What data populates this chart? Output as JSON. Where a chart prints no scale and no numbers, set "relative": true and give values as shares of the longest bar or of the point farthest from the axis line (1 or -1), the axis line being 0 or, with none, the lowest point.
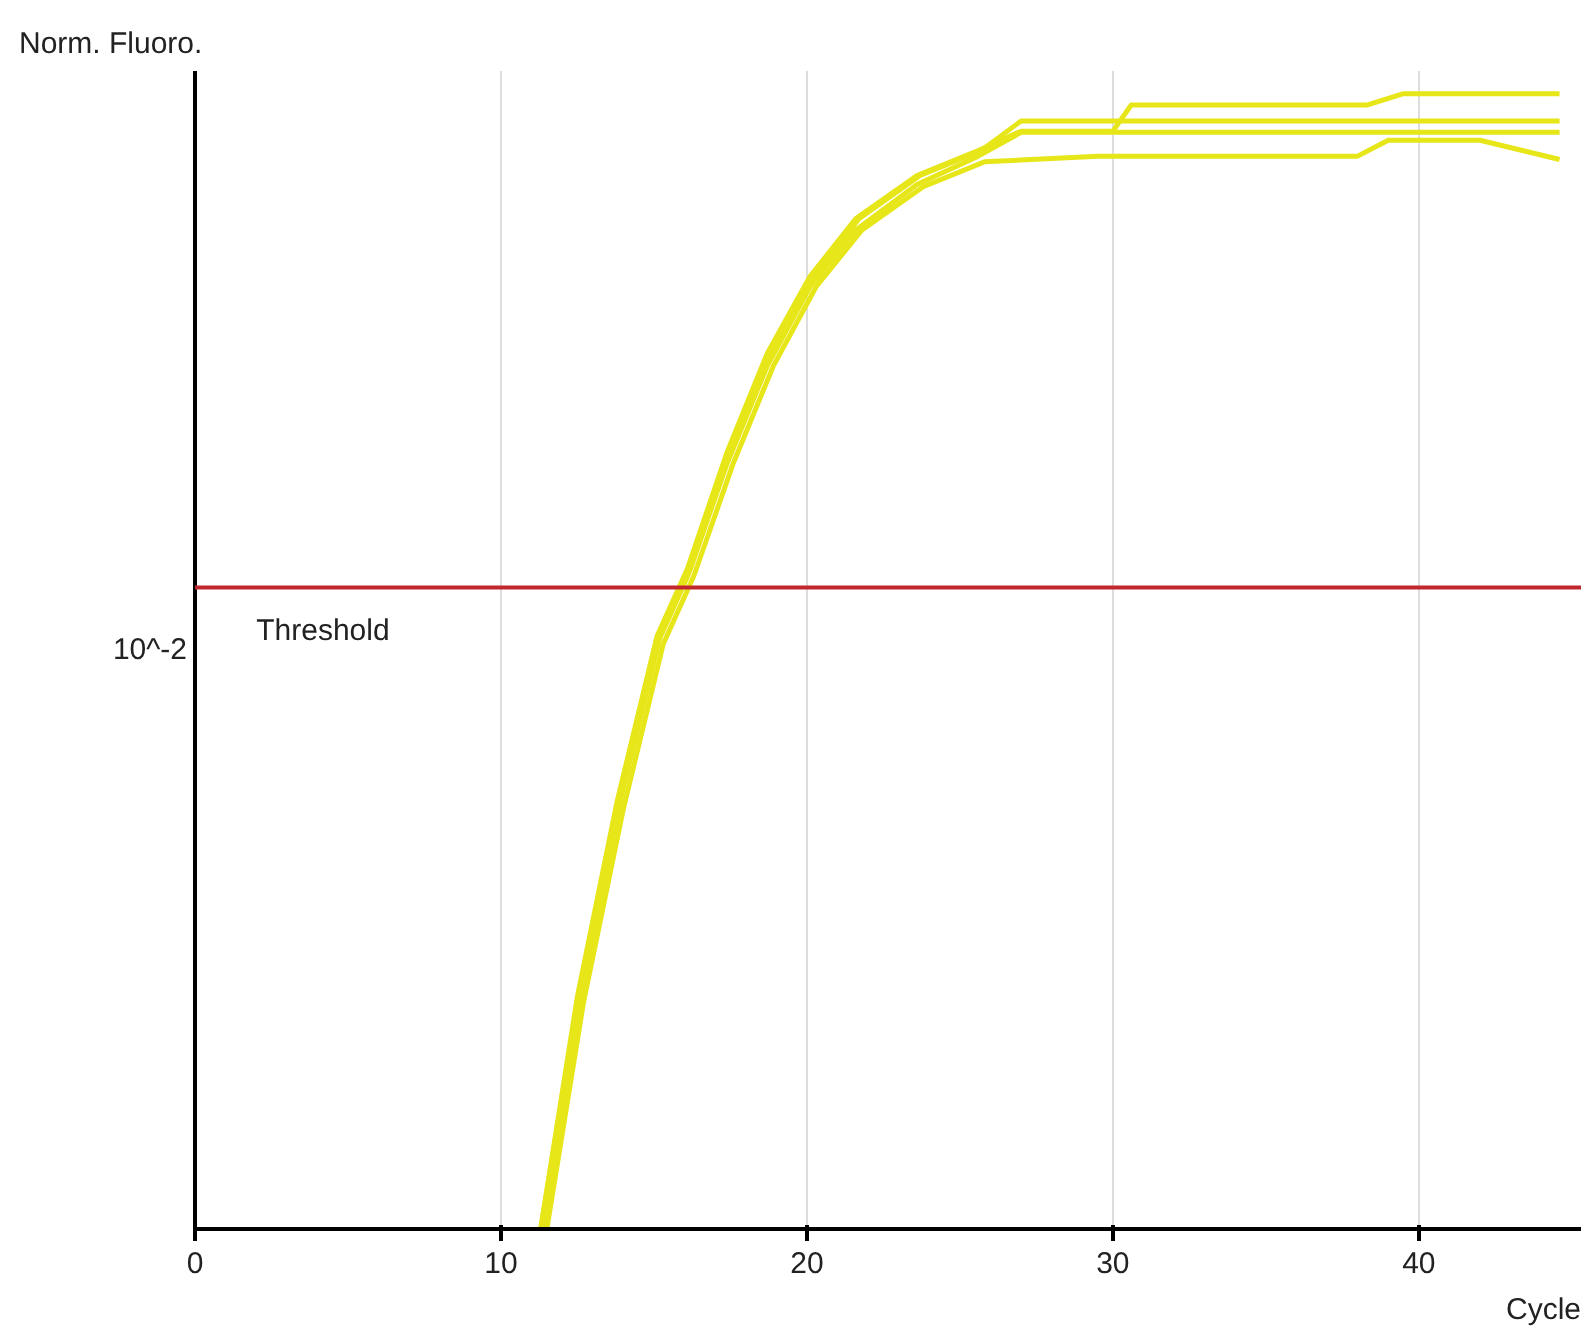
{
  "chart_data": {
    "type": "line",
    "relative": true,
    "ylabel": "Norm. Fluoro.",
    "xlabel": "Cycle",
    "xlim": [
      0,
      45.3
    ],
    "xticks": [
      0,
      10,
      20,
      30,
      40
    ],
    "annotations": [
      "10^-2"
    ],
    "grid": "x",
    "marker": "none",
    "line_style": "solid",
    "ref_lines": [
      {
        "axis": "y",
        "value": 0.565,
        "label": "Threshold",
        "color": "#c0282d"
      }
    ],
    "series": [
      {
        "color": "#e6e619",
        "x": [
          11.3,
          12.5,
          13.8,
          15.1,
          16.1,
          17.4,
          18.7,
          20.1,
          21.6,
          23.6,
          25.6,
          27,
          30,
          30.6,
          38.3,
          39.5,
          44.6
        ],
        "values": [
          0,
          0.205,
          0.377,
          0.522,
          0.582,
          0.685,
          0.771,
          0.839,
          0.89,
          0.928,
          0.95,
          0.967,
          0.967,
          0.99,
          0.99,
          1.0,
          1.0
        ]
      },
      {
        "color": "#e6e619",
        "x": [
          11.4,
          12.6,
          13.9,
          15.2,
          16.2,
          17.5,
          18.8,
          20.2,
          21.7,
          23.7,
          25.7,
          27,
          44.6
        ],
        "values": [
          0,
          0.205,
          0.377,
          0.522,
          0.582,
          0.685,
          0.771,
          0.839,
          0.89,
          0.928,
          0.95,
          0.976,
          0.976
        ]
      },
      {
        "color": "#e6e619",
        "x": [
          11.3,
          12.5,
          13.8,
          15.1,
          16.1,
          17.4,
          18.7,
          20.1,
          21.6,
          23.6,
          25.6,
          27,
          44.6
        ],
        "values": [
          0,
          0.2,
          0.37,
          0.515,
          0.575,
          0.675,
          0.76,
          0.83,
          0.88,
          0.92,
          0.945,
          0.966,
          0.966
        ]
      },
      {
        "color": "#e6e619",
        "x": [
          11.5,
          12.7,
          14.0,
          15.3,
          16.3,
          17.6,
          18.9,
          20.3,
          21.8,
          23.8,
          25.8,
          29.5,
          38,
          39,
          42,
          44.6
        ],
        "values": [
          0,
          0.2,
          0.37,
          0.515,
          0.575,
          0.675,
          0.76,
          0.83,
          0.88,
          0.918,
          0.94,
          0.945,
          0.945,
          0.959,
          0.959,
          0.942
        ]
      }
    ]
  }
}
